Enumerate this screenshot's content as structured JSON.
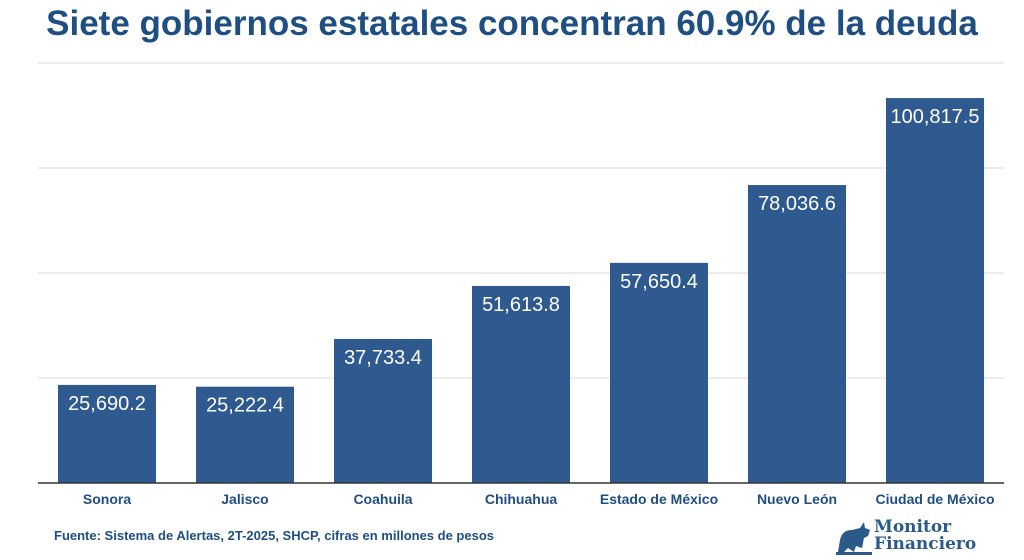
{
  "chart_data": {
    "type": "bar",
    "title": "Siete gobiernos estatales concentran 60.9% de la deuda",
    "categories": [
      "Sonora",
      "Jalisco",
      "Coahuila",
      "Chihuahua",
      "Estado de México",
      "Nuevo León",
      "Ciudad de México"
    ],
    "values": [
      25690.2,
      25222.4,
      37733.4,
      51613.8,
      57650.4,
      78036.6,
      100817.5
    ],
    "data_labels": [
      "25,690.2",
      "25,222.4",
      "37,733.4",
      "51,613.8",
      "57,650.4",
      "78,036.6",
      "100,817.5"
    ],
    "xlabel": "",
    "ylabel": "",
    "ylim": [
      0,
      110000
    ],
    "grid": true,
    "bar_color": "#2f5a8f",
    "title_color": "#1f4e82"
  },
  "source": "Fuente: Sistema de Alertas, 2T-2025, SHCP, cifras en millones de pesos",
  "logo": {
    "line1": "Monitor",
    "line2": "Financiero"
  }
}
